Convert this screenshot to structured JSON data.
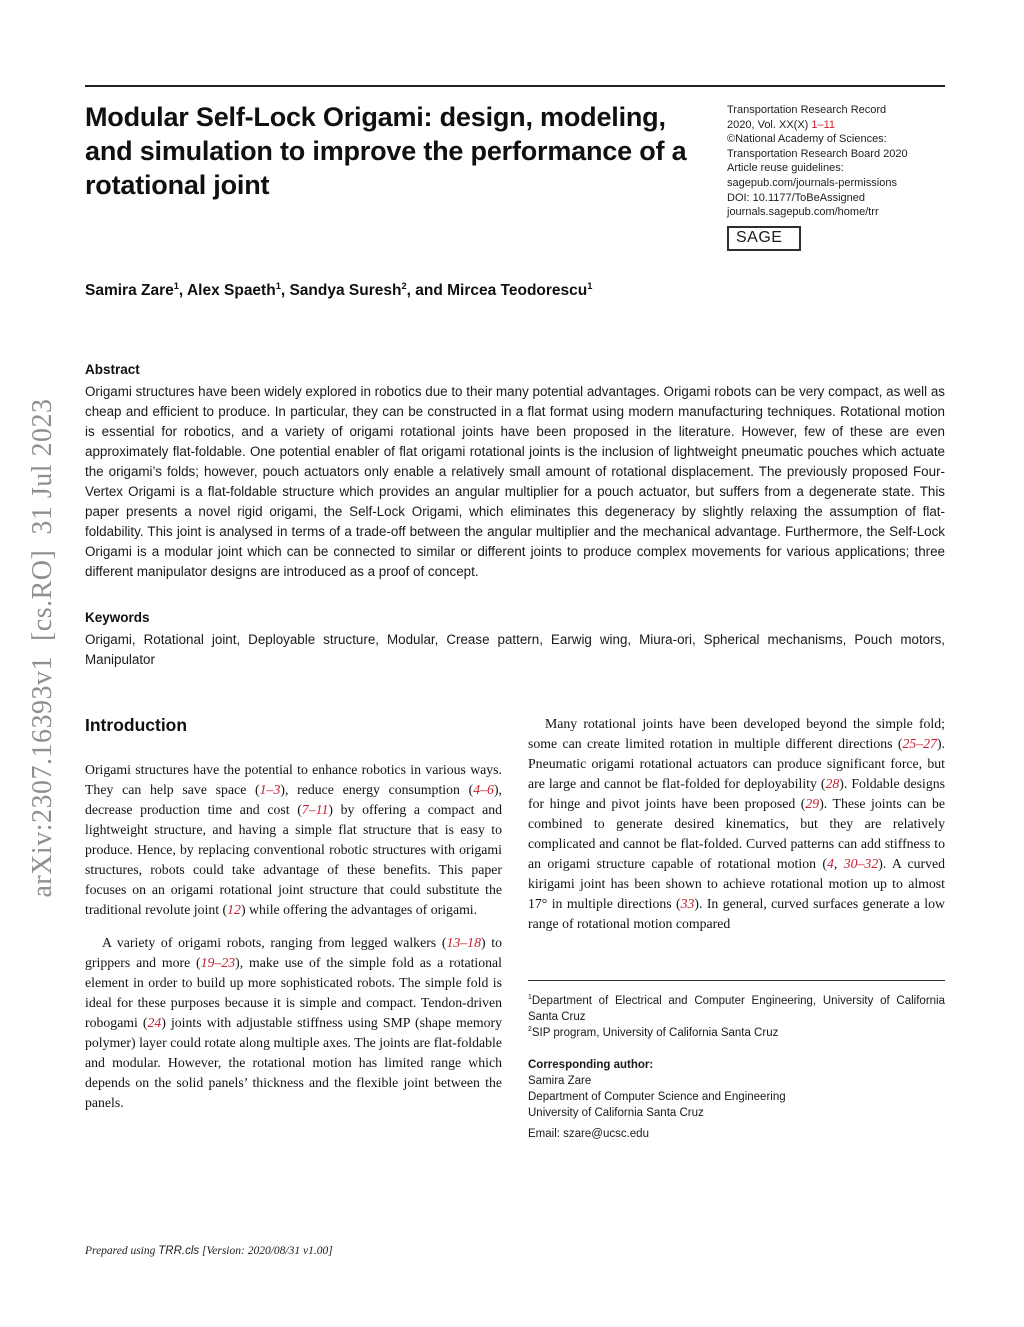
{
  "watermark": "arXiv:2307.16393v1  [cs.RO]  31 Jul 2023",
  "header": {
    "title": "Modular Self-Lock Origami: design, modeling, and simulation to improve the performance of a rotational joint",
    "journal_lines": [
      [
        {
          "t": "Transportation Research Record"
        }
      ],
      [
        {
          "t": "2020, Vol. XX(X) "
        },
        {
          "t": "1–11",
          "c": "red"
        }
      ],
      [
        {
          "t": "©National Academy of Sciences:"
        }
      ],
      [
        {
          "t": "Transportation Research Board 2020"
        }
      ],
      [
        {
          "t": "Article reuse guidelines:"
        }
      ],
      [
        {
          "t": "sagepub.com/journals-permissions"
        }
      ],
      [
        {
          "t": "DOI: 10.1177/ToBeAssigned"
        }
      ],
      [
        {
          "t": "journals.sagepub.com/home/trr"
        }
      ]
    ],
    "logo": "SAGE",
    "authors_segments": [
      {
        "t": "Samira Zare"
      },
      {
        "t": "1",
        "c": "sup"
      },
      {
        "t": ", Alex Spaeth"
      },
      {
        "t": "1",
        "c": "sup"
      },
      {
        "t": ", Sandya Suresh"
      },
      {
        "t": "2",
        "c": "sup"
      },
      {
        "t": ", and Mircea Teodorescu"
      },
      {
        "t": "1",
        "c": "sup"
      }
    ]
  },
  "abstract": {
    "heading": "Abstract",
    "body": "Origami structures have been widely explored in robotics due to their many potential advantages. Origami robots can be very compact, as well as cheap and efficient to produce. In particular, they can be constructed in a flat format using modern manufacturing techniques. Rotational motion is essential for robotics, and a variety of origami rotational joints have been proposed in the literature. However, few of these are even approximately flat-foldable. One potential enabler of flat origami rotational joints is the inclusion of lightweight pneumatic pouches which actuate the origami’s folds; however, pouch actuators only enable a relatively small amount of rotational displacement. The previously proposed Four-Vertex Origami is a flat-foldable structure which provides an angular multiplier for a pouch actuator, but suffers from a degenerate state. This paper presents a novel rigid origami, the Self-Lock Origami, which eliminates this degeneracy by slightly relaxing the assumption of flat-foldability. This joint is analysed in terms of a trade-off between the angular multiplier and the mechanical advantage. Furthermore, the Self-Lock Origami is a modular joint which can be connected to similar or different joints to produce complex movements for various applications; three different manipulator designs are introduced as a proof of concept."
  },
  "keywords": {
    "heading": "Keywords",
    "body": "Origami, Rotational joint, Deployable structure, Modular, Crease pattern, Earwig wing, Miura-ori, Spherical mechanisms, Pouch motors, Manipulator"
  },
  "introduction": {
    "heading": "Introduction",
    "para1_segments": [
      {
        "t": "Origami structures have the potential to enhance robotics in various ways. They can help save space ("
      },
      {
        "t": "1–3",
        "c": "ref"
      },
      {
        "t": "), reduce energy consumption ("
      },
      {
        "t": "4–6",
        "c": "ref"
      },
      {
        "t": "), decrease production time and cost ("
      },
      {
        "t": "7–11",
        "c": "ref"
      },
      {
        "t": ") by offering a compact and lightweight structure, and having a simple flat structure that is easy to produce. Hence, by replacing conventional robotic structures with origami structures, robots could take advantage of these benefits. This paper focuses on an origami rotational joint structure that could substitute the traditional revolute joint ("
      },
      {
        "t": "12",
        "c": "ref"
      },
      {
        "t": ") while offering the advantages of origami."
      }
    ],
    "para2_segments": [
      {
        "t": "A variety of origami robots, ranging from legged walkers ("
      },
      {
        "t": "13–18",
        "c": "ref"
      },
      {
        "t": ") to grippers and more ("
      },
      {
        "t": "19–23",
        "c": "ref"
      },
      {
        "t": "), make use of the simple fold as a rotational element in order to build up more sophisticated robots. The simple fold is ideal for these purposes because it is simple and compact. Tendon-driven robogami ("
      },
      {
        "t": "24",
        "c": "ref"
      },
      {
        "t": ") joints with adjustable stiffness using SMP (shape memory polymer) layer could rotate along multiple axes. The joints are flat-foldable and modular. However, the rotational motion has limited range which depends on the solid panels’ thickness and the flexible joint between the panels."
      }
    ],
    "para3_segments": [
      {
        "t": "Many rotational joints have been developed beyond the simple fold; some can create limited rotation in multiple different directions ("
      },
      {
        "t": "25–27",
        "c": "ref"
      },
      {
        "t": "). Pneumatic origami rotational actuators can produce significant force, but are large and cannot be flat-folded for deployability ("
      },
      {
        "t": "28",
        "c": "ref"
      },
      {
        "t": "). Foldable designs for hinge and pivot joints have been proposed ("
      },
      {
        "t": "29",
        "c": "ref"
      },
      {
        "t": "). These joints can be combined to generate desired kinematics, but they are relatively complicated and cannot be flat-folded. Curved patterns can add stiffness to an origami structure capable of rotational motion ("
      },
      {
        "t": "4",
        "c": "ref"
      },
      {
        "t": ", "
      },
      {
        "t": "30–32",
        "c": "ref"
      },
      {
        "t": "). A curved kirigami joint has been shown to achieve rotational motion up to almost 17° in multiple directions ("
      },
      {
        "t": "33",
        "c": "ref"
      },
      {
        "t": "). In general, curved surfaces generate a low range of rotational motion compared"
      }
    ]
  },
  "footnotes": {
    "affil1_segments": [
      {
        "t": "1",
        "c": "sup"
      },
      {
        "t": "Department of Electrical and Computer Engineering, University of California Santa Cruz"
      }
    ],
    "affil2_segments": [
      {
        "t": "2",
        "c": "sup"
      },
      {
        "t": "SIP program, University of California Santa Cruz"
      }
    ],
    "corresponding_label": "Corresponding author:",
    "corresponding_lines": [
      "Samira Zare",
      "Department of Computer Science and Engineering",
      "University of California Santa Cruz",
      "Email: szare@ucsc.edu"
    ]
  },
  "footer": {
    "prepared_segments": [
      {
        "t": "Prepared using ",
        "c": "it"
      },
      {
        "t": "TRR.cls",
        "c": "cls"
      },
      {
        "t": " [Version: 2020/08/31 v1.00]",
        "c": "it"
      }
    ]
  },
  "colors": {
    "citation_red": "#c2202e",
    "watermark_gray": "#8f8f8f",
    "text": "#151515"
  }
}
